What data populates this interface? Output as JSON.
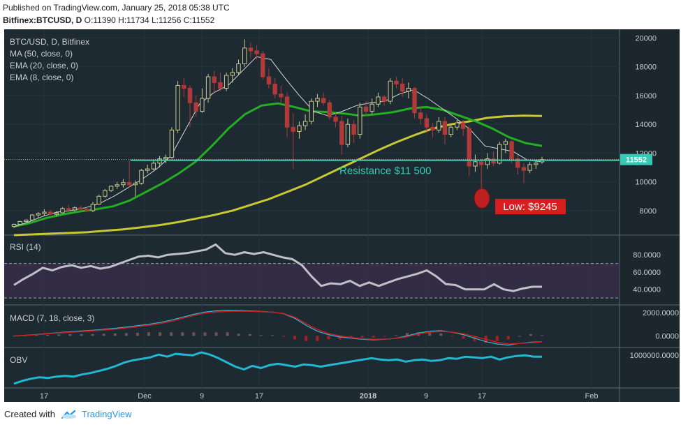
{
  "header": {
    "published": "Published on TradingView.com, January 25, 2018 05:38 UTC",
    "symbol_line_bold": "Bitfinex:BTCUSD, D",
    "ohlc": " O:11390 H:11734 L:11256 C:11552"
  },
  "footer": {
    "created_with": "Created with",
    "brand": "TradingView"
  },
  "colors": {
    "background": "#1e2a32",
    "candle_up": "#c9c98f",
    "candle_down": "#b03a3a",
    "ma50": "#c8c832",
    "ema20": "#22b022",
    "ema8": "#d8d8d8",
    "resistance": "#36c9b5",
    "rsi": "#c0c0c8",
    "macd_line": "#3db4d6",
    "signal_line": "#c81e1e",
    "obv": "#22b8d2",
    "low_marker": "#d81e1e"
  },
  "chart_data": [
    {
      "type": "candlestick",
      "title": "BTC/USD, D, Bitfinex",
      "legend": [
        "MA (50, close, 0)",
        "EMA (20, close, 0)",
        "EMA (8, close, 0)"
      ],
      "ylim": [
        6300,
        20600
      ],
      "y_ticks": [
        8000,
        10000,
        12000,
        14000,
        16000,
        18000,
        20000
      ],
      "x_ticks": [
        "17",
        "Dec",
        "9",
        "17",
        "2018",
        "9",
        "17",
        "Feb"
      ],
      "last_price_label": "11552",
      "annotations": {
        "resistance_label": "Resistance $11 500",
        "resistance_value": 11500,
        "low_label": "Low: $9245"
      },
      "candles": [
        {
          "o": 6900,
          "h": 7100,
          "l": 6800,
          "c": 7050
        },
        {
          "o": 7050,
          "h": 7300,
          "l": 7000,
          "c": 7250
        },
        {
          "o": 7250,
          "h": 7400,
          "l": 7200,
          "c": 7350
        },
        {
          "o": 7350,
          "h": 7750,
          "l": 7300,
          "c": 7700
        },
        {
          "o": 7700,
          "h": 7900,
          "l": 7500,
          "c": 7800
        },
        {
          "o": 7800,
          "h": 8100,
          "l": 7650,
          "c": 7900
        },
        {
          "o": 7900,
          "h": 8050,
          "l": 7700,
          "c": 7750
        },
        {
          "o": 7750,
          "h": 7950,
          "l": 7600,
          "c": 7850
        },
        {
          "o": 7850,
          "h": 8250,
          "l": 7800,
          "c": 8150
        },
        {
          "o": 8150,
          "h": 8400,
          "l": 7900,
          "c": 8050
        },
        {
          "o": 8050,
          "h": 8300,
          "l": 7950,
          "c": 8200
        },
        {
          "o": 8200,
          "h": 8350,
          "l": 8000,
          "c": 8100
        },
        {
          "o": 8100,
          "h": 8250,
          "l": 7950,
          "c": 8000
        },
        {
          "o": 8000,
          "h": 8600,
          "l": 7900,
          "c": 8450
        },
        {
          "o": 8450,
          "h": 9100,
          "l": 8400,
          "c": 9000
        },
        {
          "o": 9000,
          "h": 9500,
          "l": 8900,
          "c": 9400
        },
        {
          "o": 9400,
          "h": 9750,
          "l": 9300,
          "c": 9700
        },
        {
          "o": 9700,
          "h": 10000,
          "l": 9500,
          "c": 9800
        },
        {
          "o": 9800,
          "h": 10200,
          "l": 9600,
          "c": 9950
        },
        {
          "o": 9950,
          "h": 11500,
          "l": 9600,
          "c": 9800
        },
        {
          "o": 9800,
          "h": 10100,
          "l": 9000,
          "c": 9900
        },
        {
          "o": 9900,
          "h": 10900,
          "l": 9800,
          "c": 10800
        },
        {
          "o": 10800,
          "h": 11200,
          "l": 10600,
          "c": 10900
        },
        {
          "o": 10900,
          "h": 11500,
          "l": 10800,
          "c": 11300
        },
        {
          "o": 11300,
          "h": 11800,
          "l": 11000,
          "c": 11600
        },
        {
          "o": 11600,
          "h": 11900,
          "l": 11300,
          "c": 11700
        },
        {
          "o": 11700,
          "h": 13800,
          "l": 11600,
          "c": 13600
        },
        {
          "o": 13600,
          "h": 17000,
          "l": 13400,
          "c": 16700
        },
        {
          "o": 16700,
          "h": 17200,
          "l": 15900,
          "c": 16500
        },
        {
          "o": 16500,
          "h": 16700,
          "l": 13800,
          "c": 15500
        },
        {
          "o": 15500,
          "h": 16000,
          "l": 14500,
          "c": 14900
        },
        {
          "o": 14900,
          "h": 16500,
          "l": 14800,
          "c": 15800
        },
        {
          "o": 15800,
          "h": 17500,
          "l": 15500,
          "c": 17300
        },
        {
          "o": 17300,
          "h": 17700,
          "l": 16200,
          "c": 16900
        },
        {
          "o": 16900,
          "h": 17600,
          "l": 16300,
          "c": 16500
        },
        {
          "o": 16500,
          "h": 17600,
          "l": 16300,
          "c": 17400
        },
        {
          "o": 17400,
          "h": 17900,
          "l": 16900,
          "c": 17600
        },
        {
          "o": 17600,
          "h": 18500,
          "l": 17400,
          "c": 18200
        },
        {
          "o": 18200,
          "h": 19900,
          "l": 18000,
          "c": 19300
        },
        {
          "o": 19300,
          "h": 19700,
          "l": 18600,
          "c": 19100
        },
        {
          "o": 19100,
          "h": 19500,
          "l": 18500,
          "c": 18900
        },
        {
          "o": 18900,
          "h": 19100,
          "l": 17100,
          "c": 17300
        },
        {
          "o": 17300,
          "h": 17900,
          "l": 16500,
          "c": 16800
        },
        {
          "o": 16800,
          "h": 17200,
          "l": 15800,
          "c": 16100
        },
        {
          "o": 16100,
          "h": 16700,
          "l": 15500,
          "c": 15900
        },
        {
          "o": 15900,
          "h": 16200,
          "l": 13100,
          "c": 13800
        },
        {
          "o": 13800,
          "h": 14800,
          "l": 10900,
          "c": 13500
        },
        {
          "o": 13500,
          "h": 14200,
          "l": 13000,
          "c": 13900
        },
        {
          "o": 13900,
          "h": 14700,
          "l": 13600,
          "c": 14200
        },
        {
          "o": 14200,
          "h": 15800,
          "l": 14000,
          "c": 15600
        },
        {
          "o": 15600,
          "h": 16100,
          "l": 15200,
          "c": 15800
        },
        {
          "o": 15800,
          "h": 16200,
          "l": 15300,
          "c": 15500
        },
        {
          "o": 15500,
          "h": 15700,
          "l": 14300,
          "c": 14500
        },
        {
          "o": 14500,
          "h": 14800,
          "l": 13800,
          "c": 14200
        },
        {
          "o": 14200,
          "h": 14600,
          "l": 11900,
          "c": 12600
        },
        {
          "o": 12600,
          "h": 14400,
          "l": 12400,
          "c": 14000
        },
        {
          "o": 14000,
          "h": 14300,
          "l": 12700,
          "c": 13300
        },
        {
          "o": 13300,
          "h": 15500,
          "l": 13000,
          "c": 15200
        },
        {
          "o": 15200,
          "h": 15600,
          "l": 14600,
          "c": 14900
        },
        {
          "o": 14900,
          "h": 15800,
          "l": 14700,
          "c": 15400
        },
        {
          "o": 15400,
          "h": 16200,
          "l": 15200,
          "c": 15900
        },
        {
          "o": 15900,
          "h": 16000,
          "l": 15300,
          "c": 15600
        },
        {
          "o": 15600,
          "h": 17200,
          "l": 15400,
          "c": 17000
        },
        {
          "o": 17000,
          "h": 17300,
          "l": 16500,
          "c": 16800
        },
        {
          "o": 16800,
          "h": 17200,
          "l": 15900,
          "c": 16300
        },
        {
          "o": 16300,
          "h": 16900,
          "l": 15800,
          "c": 16500
        },
        {
          "o": 16500,
          "h": 16600,
          "l": 14400,
          "c": 14800
        },
        {
          "o": 14800,
          "h": 15300,
          "l": 14000,
          "c": 14400
        },
        {
          "o": 14400,
          "h": 14700,
          "l": 13400,
          "c": 13800
        },
        {
          "o": 13800,
          "h": 14100,
          "l": 13100,
          "c": 13600
        },
        {
          "o": 13600,
          "h": 14500,
          "l": 13400,
          "c": 14200
        },
        {
          "o": 14200,
          "h": 14500,
          "l": 12600,
          "c": 13300
        },
        {
          "o": 13300,
          "h": 14000,
          "l": 13100,
          "c": 13800
        },
        {
          "o": 13800,
          "h": 14300,
          "l": 13600,
          "c": 14100
        },
        {
          "o": 14100,
          "h": 14300,
          "l": 13200,
          "c": 13700
        },
        {
          "o": 13700,
          "h": 13900,
          "l": 10400,
          "c": 11100
        },
        {
          "o": 11100,
          "h": 11900,
          "l": 10700,
          "c": 11400
        },
        {
          "o": 11400,
          "h": 11600,
          "l": 9245,
          "c": 11200
        },
        {
          "o": 11200,
          "h": 12000,
          "l": 10900,
          "c": 11600
        },
        {
          "o": 11600,
          "h": 12100,
          "l": 11100,
          "c": 11300
        },
        {
          "o": 11300,
          "h": 12800,
          "l": 11200,
          "c": 12600
        },
        {
          "o": 12600,
          "h": 13000,
          "l": 12000,
          "c": 12800
        },
        {
          "o": 12800,
          "h": 12900,
          "l": 11300,
          "c": 11600
        },
        {
          "o": 11600,
          "h": 11900,
          "l": 10500,
          "c": 11000
        },
        {
          "o": 11000,
          "h": 11300,
          "l": 9900,
          "c": 10800
        },
        {
          "o": 10800,
          "h": 11400,
          "l": 10600,
          "c": 11200
        },
        {
          "o": 11200,
          "h": 11500,
          "l": 10900,
          "c": 11300
        },
        {
          "o": 11390,
          "h": 11734,
          "l": 11256,
          "c": 11552
        }
      ],
      "ma50": [
        6300,
        6350,
        6400,
        6450,
        6500,
        6600,
        6700,
        6850,
        7000,
        7200,
        7450,
        7700,
        8000,
        8400,
        8800,
        9300,
        9800,
        10400,
        11000,
        11600,
        12200,
        12750,
        13250,
        13700,
        14000,
        14200,
        14450,
        14560,
        14600,
        14580
      ],
      "ema20": [
        6900,
        7150,
        7500,
        7750,
        7950,
        8100,
        8300,
        8700,
        9300,
        9900,
        10600,
        11400,
        12500,
        13700,
        14700,
        15300,
        15450,
        15200,
        14900,
        14850,
        14750,
        14600,
        14700,
        14850,
        15100,
        15200,
        15000,
        14600,
        14200,
        13700,
        13100,
        12700,
        12500
      ],
      "ema8": [
        6900,
        7200,
        7600,
        7900,
        8000,
        8200,
        8500,
        9000,
        9600,
        10200,
        10900,
        11800,
        13600,
        15400,
        16200,
        16700,
        17700,
        18700,
        18500,
        17200,
        16000,
        14900,
        14600,
        14900,
        15300,
        15500,
        15600,
        16100,
        16400,
        15800,
        15100,
        14400,
        13600,
        12500,
        12300,
        12100,
        11500,
        11400
      ]
    },
    {
      "type": "line",
      "title": "RSI (14)",
      "ylim": [
        22,
        102
      ],
      "y_ticks": [
        "40.0000",
        "60.0000",
        "80.0000"
      ],
      "y_tick_values": [
        40,
        60,
        80
      ],
      "bands": [
        30,
        70
      ],
      "values": [
        45,
        52,
        58,
        65,
        62,
        66,
        68,
        65,
        67,
        64,
        66,
        70,
        74,
        78,
        79,
        77,
        80,
        81,
        82,
        84,
        86,
        92,
        82,
        80,
        83,
        81,
        83,
        80,
        77,
        75,
        68,
        55,
        44,
        47,
        46,
        50,
        44,
        48,
        44,
        48,
        52,
        55,
        58,
        62,
        55,
        46,
        45,
        40,
        40,
        40,
        46,
        40,
        38,
        41,
        43,
        43
      ]
    },
    {
      "type": "line",
      "title": "MACD (7, 18, close, 3)",
      "ylim": [
        -1000,
        2600
      ],
      "y_ticks": [
        "0.0000",
        "2000.0000"
      ],
      "y_tick_values": [
        0,
        2000
      ],
      "series": [
        {
          "values": [
            0,
            50,
            120,
            200,
            280,
            360,
            420,
            480,
            560,
            650,
            760,
            880,
            1000,
            1150,
            1350,
            1600,
            1850,
            2050,
            2150,
            2200,
            2180,
            2150,
            2100,
            2050,
            1900,
            1500,
            900,
            400,
            100,
            -100,
            -200,
            -300,
            -350,
            -300,
            -200,
            0,
            250,
            400,
            450,
            300,
            100,
            -200,
            -500,
            -700,
            -800,
            -650,
            -550,
            -500
          ]
        },
        {
          "values": [
            0,
            40,
            100,
            170,
            240,
            310,
            370,
            430,
            500,
            580,
            680,
            790,
            900,
            1050,
            1250,
            1500,
            1750,
            1950,
            2050,
            2100,
            2120,
            2100,
            2080,
            2030,
            1920,
            1600,
            1050,
            550,
            200,
            0,
            -150,
            -250,
            -300,
            -280,
            -220,
            -80,
            150,
            300,
            380,
            320,
            180,
            -50,
            -300,
            -550,
            -700,
            -650,
            -600,
            -520
          ]
        }
      ]
    },
    {
      "type": "line",
      "title": "OBV",
      "ylim": [
        -1300000,
        1500000
      ],
      "y_ticks": [
        "1000000.0000"
      ],
      "y_tick_values": [
        1000000
      ],
      "values": [
        -1000000,
        -800000,
        -650000,
        -550000,
        -600000,
        -500000,
        -450000,
        -500000,
        -350000,
        -250000,
        -100000,
        50000,
        250000,
        500000,
        650000,
        750000,
        850000,
        1050000,
        900000,
        1100000,
        1050000,
        1000000,
        1200000,
        1050000,
        800000,
        500000,
        200000,
        0,
        250000,
        100000,
        300000,
        400000,
        300000,
        200000,
        350000,
        300000,
        200000,
        300000,
        400000,
        500000,
        600000,
        700000,
        800000,
        700000,
        650000,
        700000,
        550000,
        650000,
        700000,
        600000,
        650000,
        800000,
        750000,
        900000,
        850000,
        800000,
        900000,
        700000,
        850000,
        950000,
        1000000,
        900000,
        900000
      ]
    }
  ]
}
